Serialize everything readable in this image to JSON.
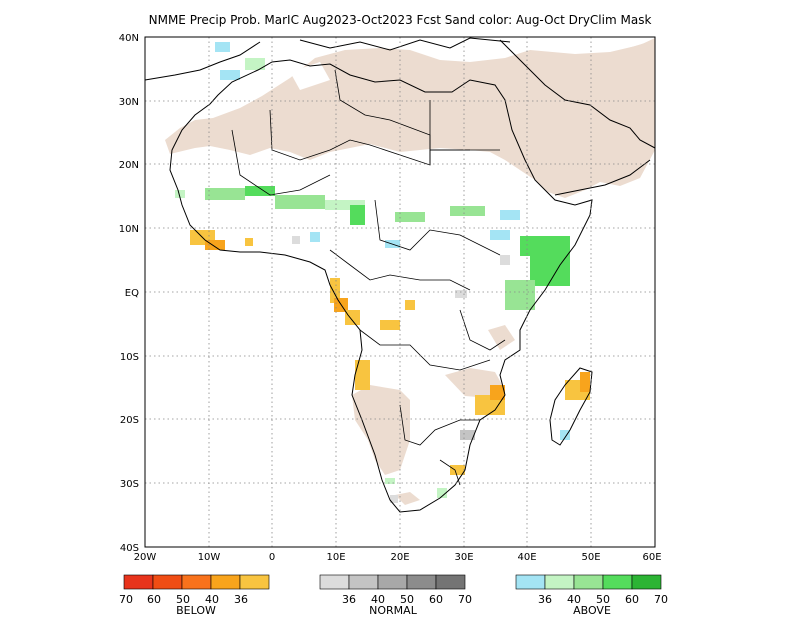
{
  "title": "NMME Precip Prob. MarIC  Aug2023-Oct2023 Fcst  Sand color: Aug-Oct DryClim Mask",
  "axes": {
    "lat_labels": [
      "40N",
      "30N",
      "20N",
      "10N",
      "EQ",
      "10S",
      "20S",
      "30S",
      "40S"
    ],
    "lon_labels": [
      "20W",
      "10W",
      "0",
      "10E",
      "20E",
      "30E",
      "40E",
      "50E",
      "60E"
    ],
    "lat_range": [
      -40,
      40
    ],
    "lon_range": [
      -20,
      60
    ],
    "grid": "dotted"
  },
  "colors": {
    "sand": "#ecdcd0",
    "below": [
      "#e8341c",
      "#f04d14",
      "#f8721c",
      "#f8a41c",
      "#f8c440"
    ],
    "normal": [
      "#dcdcdc",
      "#c4c4c4",
      "#a8a8a8",
      "#8c8c8c",
      "#747474"
    ],
    "above": [
      "#a4e4f4",
      "#c4f4c4",
      "#98e494",
      "#54dc5c",
      "#2cb434"
    ]
  },
  "legend": {
    "below": {
      "label": "BELOW",
      "ticks": [
        "70",
        "60",
        "50",
        "40",
        "36"
      ]
    },
    "normal": {
      "label": "NORMAL",
      "ticks": [
        "36",
        "40",
        "50",
        "60",
        "70"
      ]
    },
    "above": {
      "label": "ABOVE",
      "ticks": [
        "36",
        "40",
        "50",
        "60",
        "70"
      ]
    }
  }
}
